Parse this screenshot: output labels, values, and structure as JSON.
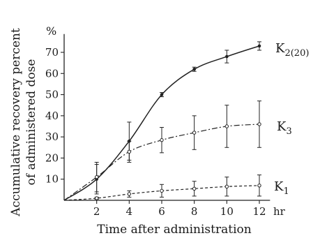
{
  "chart_data": {
    "type": "line",
    "title": "",
    "xlabel": "Time after administration",
    "ylabel_line1": "Accumulative recovery percent",
    "ylabel_line2": "of administered dose",
    "y_unit": "%",
    "x_unit": "hr",
    "xlim": [
      0,
      13
    ],
    "ylim": [
      0,
      80
    ],
    "x_ticks": [
      2,
      4,
      6,
      8,
      10,
      12
    ],
    "y_ticks": [
      10,
      20,
      30,
      40,
      50,
      60,
      70
    ],
    "x": [
      0,
      2,
      4,
      6,
      8,
      10,
      12
    ],
    "grid": false,
    "series": [
      {
        "name": "K2(20)",
        "label_main": "K",
        "label_sub": "2(20)",
        "style": "solid",
        "marker": "filled",
        "values": [
          0,
          10,
          28,
          50,
          62,
          68,
          73
        ],
        "errors": [
          0,
          7,
          9,
          1,
          1,
          3,
          2
        ]
      },
      {
        "name": "K3",
        "label_main": "K",
        "label_sub": "3",
        "style": "dashdot",
        "marker": "open",
        "values": [
          0,
          11,
          23,
          28.5,
          32,
          35,
          36
        ],
        "errors": [
          0,
          7,
          5,
          6,
          8,
          10,
          11
        ]
      },
      {
        "name": "K1",
        "label_main": "K",
        "label_sub": "1",
        "style": "dashed",
        "marker": "open",
        "values": [
          0,
          1,
          3,
          4.5,
          5.5,
          6.5,
          7
        ],
        "errors": [
          0,
          0.5,
          1.5,
          3,
          3.5,
          4.5,
          5
        ]
      }
    ]
  }
}
